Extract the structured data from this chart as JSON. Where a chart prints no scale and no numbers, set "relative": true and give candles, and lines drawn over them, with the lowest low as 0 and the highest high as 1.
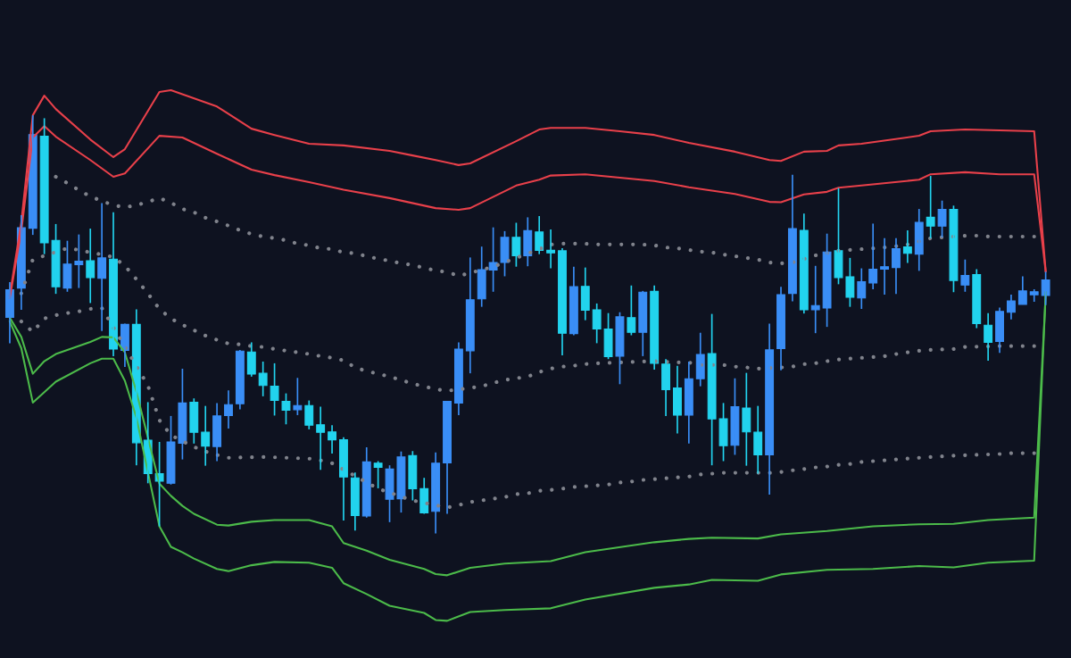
{
  "chart_data": {
    "type": "candlestick",
    "relative": true,
    "categories": [
      null,
      null,
      null,
      null,
      null,
      null,
      null,
      null,
      null,
      null,
      null,
      null,
      null,
      null,
      null,
      null,
      null,
      null,
      null,
      null,
      null,
      null,
      null,
      null,
      null,
      null,
      null,
      null,
      null,
      null,
      null,
      null,
      null,
      null,
      null,
      null,
      null,
      null,
      null,
      null,
      null,
      null,
      null,
      null,
      null,
      null,
      null,
      null,
      null,
      null,
      null,
      null,
      null,
      null,
      null,
      null,
      null,
      null,
      null,
      null,
      null,
      null,
      null,
      null,
      null,
      null,
      null,
      null,
      null,
      null,
      null,
      null,
      null,
      null,
      null,
      null,
      null,
      null,
      null,
      null,
      null,
      null,
      null,
      null,
      null,
      null,
      null,
      null,
      null,
      null,
      null
    ],
    "ohlc": [
      [
        0.517,
        0.601,
        0.455,
        0.583
      ],
      [
        0.587,
        0.761,
        0.535,
        0.731
      ],
      [
        0.73,
        1.0,
        0.714,
        0.954
      ],
      [
        0.95,
        0.993,
        0.668,
        0.695
      ],
      [
        0.701,
        0.74,
        0.573,
        0.59
      ],
      [
        0.587,
        0.7,
        0.578,
        0.644
      ],
      [
        0.643,
        0.715,
        0.587,
        0.651
      ],
      [
        0.652,
        0.729,
        0.551,
        0.612
      ],
      [
        0.61,
        0.79,
        0.484,
        0.659
      ],
      [
        0.656,
        0.768,
        0.424,
        0.441
      ],
      [
        0.438,
        0.502,
        0.398,
        0.5
      ],
      [
        0.5,
        0.536,
        0.163,
        0.217
      ],
      [
        0.223,
        0.314,
        0.12,
        0.143
      ],
      [
        0.143,
        0.219,
        0.017,
        0.125
      ],
      [
        0.12,
        0.281,
        0.117,
        0.219
      ],
      [
        0.216,
        0.394,
        0.177,
        0.312
      ],
      [
        0.314,
        0.323,
        0.215,
        0.242
      ],
      [
        0.242,
        0.305,
        0.162,
        0.209
      ],
      [
        0.208,
        0.312,
        0.173,
        0.281
      ],
      [
        0.282,
        0.342,
        0.251,
        0.308
      ],
      [
        0.31,
        0.439,
        0.297,
        0.436
      ],
      [
        0.434,
        0.457,
        0.375,
        0.381
      ],
      [
        0.383,
        0.411,
        0.328,
        0.354
      ],
      [
        0.352,
        0.407,
        0.282,
        0.318
      ],
      [
        0.316,
        0.335,
        0.261,
        0.295
      ],
      [
        0.296,
        0.372,
        0.283,
        0.306
      ],
      [
        0.306,
        0.318,
        0.249,
        0.259
      ],
      [
        0.26,
        0.303,
        0.152,
        0.242
      ],
      [
        0.243,
        0.259,
        0.191,
        0.224
      ],
      [
        0.224,
        0.23,
        0.031,
        0.135
      ],
      [
        0.133,
        0.146,
        0.007,
        0.043
      ],
      [
        0.042,
        0.206,
        0.038,
        0.171
      ],
      [
        0.168,
        0.173,
        0.108,
        0.158
      ],
      [
        0.082,
        0.163,
        0.027,
        0.154
      ],
      [
        0.083,
        0.196,
        0.05,
        0.183
      ],
      [
        0.186,
        0.197,
        0.079,
        0.107
      ],
      [
        0.107,
        0.133,
        0.047,
        0.049
      ],
      [
        0.053,
        0.194,
        0.0,
        0.168
      ],
      [
        0.169,
        0.316,
        0.047,
        0.316
      ],
      [
        0.312,
        0.457,
        0.283,
        0.441
      ],
      [
        0.437,
        0.66,
        0.383,
        0.559
      ],
      [
        0.561,
        0.686,
        0.542,
        0.631
      ],
      [
        0.63,
        0.732,
        0.578,
        0.648
      ],
      [
        0.648,
        0.723,
        0.615,
        0.708
      ],
      [
        0.708,
        0.743,
        0.638,
        0.664
      ],
      [
        0.664,
        0.756,
        0.639,
        0.724
      ],
      [
        0.721,
        0.759,
        0.668,
        0.677
      ],
      [
        0.677,
        0.727,
        0.634,
        0.671
      ],
      [
        0.676,
        0.682,
        0.426,
        0.479
      ],
      [
        0.478,
        0.638,
        0.474,
        0.59
      ],
      [
        0.591,
        0.636,
        0.51,
        0.534
      ],
      [
        0.535,
        0.55,
        0.455,
        0.489
      ],
      [
        0.489,
        0.527,
        0.417,
        0.423
      ],
      [
        0.424,
        0.529,
        0.357,
        0.518
      ],
      [
        0.516,
        0.593,
        0.474,
        0.481
      ],
      [
        0.481,
        0.58,
        0.424,
        0.577
      ],
      [
        0.579,
        0.593,
        0.392,
        0.407
      ],
      [
        0.405,
        0.417,
        0.281,
        0.344
      ],
      [
        0.348,
        0.401,
        0.239,
        0.283
      ],
      [
        0.283,
        0.411,
        0.215,
        0.37
      ],
      [
        0.37,
        0.48,
        0.352,
        0.428
      ],
      [
        0.43,
        0.525,
        0.163,
        0.274
      ],
      [
        0.274,
        0.312,
        0.173,
        0.21
      ],
      [
        0.211,
        0.371,
        0.188,
        0.303
      ],
      [
        0.3,
        0.384,
        0.162,
        0.243
      ],
      [
        0.242,
        0.305,
        0.143,
        0.188
      ],
      [
        0.188,
        0.502,
        0.093,
        0.439
      ],
      [
        0.442,
        0.59,
        0.39,
        0.571
      ],
      [
        0.574,
        0.858,
        0.555,
        0.729
      ],
      [
        0.725,
        0.765,
        0.526,
        0.535
      ],
      [
        0.535,
        0.64,
        0.479,
        0.545
      ],
      [
        0.539,
        0.717,
        0.494,
        0.673
      ],
      [
        0.676,
        0.826,
        0.596,
        0.612
      ],
      [
        0.614,
        0.659,
        0.542,
        0.565
      ],
      [
        0.563,
        0.634,
        0.537,
        0.602
      ],
      [
        0.599,
        0.741,
        0.584,
        0.632
      ],
      [
        0.632,
        0.706,
        0.571,
        0.638
      ],
      [
        0.636,
        0.706,
        0.573,
        0.681
      ],
      [
        0.685,
        0.725,
        0.647,
        0.67
      ],
      [
        0.668,
        0.776,
        0.628,
        0.744
      ],
      [
        0.756,
        0.855,
        0.706,
        0.735
      ],
      [
        0.735,
        0.796,
        0.708,
        0.775
      ],
      [
        0.775,
        0.784,
        0.577,
        0.605
      ],
      [
        0.594,
        0.655,
        0.578,
        0.617
      ],
      [
        0.619,
        0.632,
        0.491,
        0.502
      ],
      [
        0.498,
        0.527,
        0.413,
        0.457
      ],
      [
        0.459,
        0.54,
        0.432,
        0.531
      ],
      [
        0.529,
        0.571,
        0.512,
        0.556
      ],
      [
        0.548,
        0.615,
        0.548,
        0.58
      ],
      [
        0.571,
        0.584,
        0.554,
        0.578
      ],
      [
        0.569,
        0.626,
        0.546,
        0.606
      ]
    ],
    "colors": [
      "#3a8ef6",
      "#3a8ef6",
      "#3a8ef6",
      "#22d3ee",
      "#22d3ee",
      "#3a8ef6",
      "#3a8ef6",
      "#22d3ee",
      "#3a8ef6",
      "#22d3ee",
      "#3a8ef6",
      "#22d3ee",
      "#22d3ee",
      "#22d3ee",
      "#3a8ef6",
      "#3a8ef6",
      "#22d3ee",
      "#22d3ee",
      "#3a8ef6",
      "#3a8ef6",
      "#3a8ef6",
      "#22d3ee",
      "#22d3ee",
      "#22d3ee",
      "#22d3ee",
      "#3a8ef6",
      "#22d3ee",
      "#22d3ee",
      "#22d3ee",
      "#22d3ee",
      "#22d3ee",
      "#3a8ef6",
      "#22d3ee",
      "#3a8ef6",
      "#3a8ef6",
      "#22d3ee",
      "#22d3ee",
      "#3a8ef6",
      "#3a8ef6",
      "#3a8ef6",
      "#3a8ef6",
      "#3a8ef6",
      "#3a8ef6",
      "#3a8ef6",
      "#22d3ee",
      "#3a8ef6",
      "#22d3ee",
      "#22d3ee",
      "#22d3ee",
      "#3a8ef6",
      "#22d3ee",
      "#22d3ee",
      "#22d3ee",
      "#3a8ef6",
      "#22d3ee",
      "#3a8ef6",
      "#22d3ee",
      "#22d3ee",
      "#22d3ee",
      "#3a8ef6",
      "#3a8ef6",
      "#22d3ee",
      "#22d3ee",
      "#3a8ef6",
      "#22d3ee",
      "#22d3ee",
      "#3a8ef6",
      "#3a8ef6",
      "#3a8ef6",
      "#22d3ee",
      "#3a8ef6",
      "#3a8ef6",
      "#22d3ee",
      "#22d3ee",
      "#3a8ef6",
      "#3a8ef6",
      "#3a8ef6",
      "#3a8ef6",
      "#22d3ee",
      "#3a8ef6",
      "#22d3ee",
      "#3a8ef6",
      "#22d3ee",
      "#3a8ef6",
      "#22d3ee",
      "#22d3ee",
      "#3a8ef6",
      "#3a8ef6",
      "#3a8ef6",
      "#3a8ef6",
      "#3a8ef6"
    ],
    "series": [
      {
        "type": "line",
        "color": "#e8404a",
        "line_style": "solid",
        "values": [
          0.569,
          0.744,
          1.0,
          1.047,
          1.015,
          null,
          null,
          0.942,
          null,
          0.9,
          0.919,
          null,
          null,
          1.056,
          1.06,
          null,
          null,
          null,
          1.021,
          null,
          null,
          0.968,
          null,
          0.953,
          null,
          null,
          0.932,
          null,
          null,
          0.928,
          null,
          null,
          null,
          0.915,
          null,
          0.904,
          null,
          0.893,
          null,
          0.881,
          0.885,
          null,
          null,
          null,
          0.938,
          null,
          0.966,
          0.97,
          null,
          null,
          0.97,
          null,
          null,
          0.962,
          null,
          null,
          0.953,
          null,
          null,
          0.934,
          null,
          null,
          null,
          0.913,
          null,
          null,
          0.893,
          0.891,
          null,
          0.913,
          null,
          0.915,
          0.928,
          null,
          0.932,
          null,
          null,
          null,
          null,
          0.951,
          0.962,
          null,
          null,
          0.966,
          null,
          null,
          0.964,
          null,
          null,
          0.962,
          0.627
        ]
      },
      {
        "type": "line",
        "color": "#e8404a",
        "line_style": "solid",
        "values": [
          0.563,
          0.723,
          0.947,
          0.974,
          0.949,
          null,
          null,
          0.893,
          null,
          0.853,
          0.861,
          null,
          null,
          0.951,
          null,
          0.947,
          null,
          null,
          0.908,
          null,
          null,
          0.87,
          null,
          0.857,
          null,
          null,
          0.84,
          null,
          null,
          0.822,
          null,
          null,
          null,
          0.802,
          null,
          null,
          null,
          0.778,
          null,
          0.774,
          0.778,
          null,
          null,
          null,
          0.832,
          null,
          0.846,
          0.856,
          null,
          null,
          0.859,
          null,
          null,
          0.851,
          null,
          null,
          0.843,
          null,
          null,
          0.828,
          null,
          null,
          null,
          0.812,
          null,
          null,
          0.793,
          0.792,
          null,
          0.811,
          null,
          0.817,
          0.827,
          null,
          0.832,
          null,
          null,
          null,
          null,
          0.846,
          0.859,
          null,
          null,
          0.864,
          null,
          null,
          0.859,
          null,
          null,
          0.859,
          0.627
        ]
      },
      {
        "type": "line",
        "color": "#80838c",
        "line_style": "dotted",
        "values": [
          null,
          null,
          null,
          null,
          0.853,
          0.838,
          0.821,
          0.806,
          0.795,
          0.785,
          0.78,
          0.785,
          0.793,
          0.802,
          0.791,
          0.776,
          0.768,
          0.755,
          0.746,
          0.736,
          0.725,
          0.716,
          0.71,
          0.706,
          0.701,
          0.693,
          0.689,
          0.682,
          0.68,
          0.672,
          0.67,
          0.663,
          0.657,
          0.652,
          0.646,
          0.642,
          0.635,
          0.629,
          0.625,
          0.616,
          0.623,
          null,
          0.638,
          null,
          0.659,
          null,
          0.68,
          0.691,
          0.693,
          null,
          0.693,
          0.691,
          null,
          null,
          null,
          0.691,
          0.689,
          0.684,
          0.682,
          0.678,
          0.674,
          0.672,
          0.667,
          0.663,
          0.659,
          0.655,
          0.648,
          0.646,
          0.648,
          null,
          0.665,
          null,
          0.676,
          0.678,
          0.68,
          null,
          0.684,
          0.687,
          0.691,
          null,
          0.706,
          0.708,
          null,
          0.712,
          0.712,
          0.71,
          0.71,
          null,
          0.71,
          0.71,
          null
        ]
      },
      {
        "type": "line",
        "color": "#80838c",
        "line_style": "dotted",
        "values": [
          null,
          0.574,
          0.655,
          null,
          null,
          0.682,
          0.678,
          0.672,
          0.667,
          0.661,
          0.64,
          0.608,
          0.574,
          0.537,
          0.514,
          0.499,
          0.486,
          0.473,
          0.463,
          0.454,
          0.452,
          0.448,
          0.446,
          0.441,
          0.437,
          0.433,
          0.429,
          0.424,
          0.42,
          0.414,
          0.397,
          0.388,
          0.382,
          0.375,
          0.367,
          0.358,
          0.352,
          0.345,
          0.341,
          null,
          0.348,
          0.352,
          0.36,
          0.367,
          0.371,
          0.375,
          0.386,
          0.394,
          0.399,
          0.401,
          0.405,
          0.407,
          null,
          0.409,
          null,
          null,
          0.412,
          null,
          0.409,
          0.409,
          0.403,
          null,
          0.403,
          0.399,
          0.397,
          0.394,
          null,
          0.397,
          0.399,
          0.405,
          0.407,
          0.412,
          0.416,
          0.418,
          0.42,
          0.422,
          0.424,
          0.429,
          0.433,
          0.437,
          0.439,
          null,
          0.441,
          0.446,
          null,
          null,
          0.448,
          null,
          0.448,
          0.448,
          null
        ]
      },
      {
        "type": "line",
        "color": "#80838c",
        "line_style": "dotted",
        "values": [
          null,
          0.507,
          0.482,
          0.514,
          0.522,
          0.527,
          0.531,
          0.537,
          0.539,
          null,
          null,
          null,
          0.354,
          0.271,
          0.235,
          null,
          0.207,
          0.196,
          0.188,
          0.181,
          null,
          null,
          0.183,
          null,
          0.181,
          null,
          0.179,
          0.175,
          0.168,
          null,
          null,
          null,
          0.107,
          null,
          null,
          0.079,
          null,
          null,
          0.062,
          0.068,
          0.075,
          0.079,
          0.083,
          0.087,
          0.094,
          0.096,
          0.102,
          0.104,
          0.107,
          0.111,
          0.113,
          0.115,
          0.117,
          0.122,
          0.124,
          0.128,
          0.13,
          0.132,
          0.134,
          0.136,
          0.141,
          0.143,
          0.145,
          null,
          null,
          null,
          0.145,
          0.147,
          0.151,
          0.154,
          0.158,
          0.16,
          0.164,
          0.166,
          0.171,
          0.173,
          0.175,
          0.177,
          0.179,
          0.181,
          0.183,
          null,
          0.186,
          null,
          0.188,
          null,
          0.19,
          0.192,
          0.192,
          0.192,
          null
        ]
      },
      {
        "type": "line",
        "color": "#4cbb4a",
        "line_style": "solid",
        "values": [
          0.516,
          0.47,
          0.382,
          0.412,
          0.429,
          null,
          null,
          0.458,
          0.47,
          0.469,
          0.433,
          0.339,
          null,
          0.119,
          0.09,
          0.066,
          0.047,
          null,
          0.021,
          0.019,
          null,
          0.028,
          null,
          0.032,
          null,
          null,
          0.032,
          null,
          0.017,
          -0.023,
          null,
          -0.041,
          null,
          -0.063,
          null,
          null,
          -0.085,
          -0.097,
          -0.1,
          null,
          -0.082,
          null,
          null,
          -0.072,
          null,
          null,
          null,
          -0.066,
          null,
          null,
          -0.045,
          null,
          null,
          null,
          null,
          null,
          -0.021,
          null,
          null,
          -0.013,
          null,
          -0.01,
          null,
          null,
          null,
          -0.012,
          null,
          -0.002,
          null,
          null,
          null,
          0.006,
          null,
          null,
          null,
          0.017,
          null,
          null,
          null,
          0.022,
          null,
          null,
          0.023,
          null,
          null,
          0.032,
          null,
          null,
          null,
          0.038,
          0.569
        ]
      },
      {
        "type": "line",
        "color": "#4cbb4a",
        "line_style": "solid",
        "values": [
          0.507,
          0.443,
          0.313,
          null,
          0.363,
          null,
          null,
          0.407,
          0.418,
          0.418,
          0.365,
          0.277,
          null,
          0.017,
          -0.032,
          -0.045,
          -0.06,
          null,
          -0.085,
          -0.09,
          null,
          -0.076,
          null,
          -0.068,
          null,
          null,
          -0.07,
          null,
          -0.082,
          -0.119,
          null,
          -0.145,
          null,
          -0.173,
          null,
          null,
          -0.19,
          -0.207,
          -0.209,
          null,
          -0.188,
          null,
          null,
          -0.183,
          null,
          null,
          null,
          -0.179,
          null,
          null,
          -0.158,
          null,
          null,
          null,
          null,
          null,
          -0.13,
          null,
          null,
          -0.122,
          null,
          -0.111,
          null,
          null,
          null,
          -0.113,
          null,
          -0.098,
          null,
          null,
          null,
          -0.087,
          null,
          null,
          null,
          -0.085,
          null,
          null,
          null,
          -0.078,
          null,
          null,
          -0.081,
          null,
          null,
          -0.07,
          null,
          null,
          null,
          -0.065,
          0.577
        ]
      }
    ]
  }
}
